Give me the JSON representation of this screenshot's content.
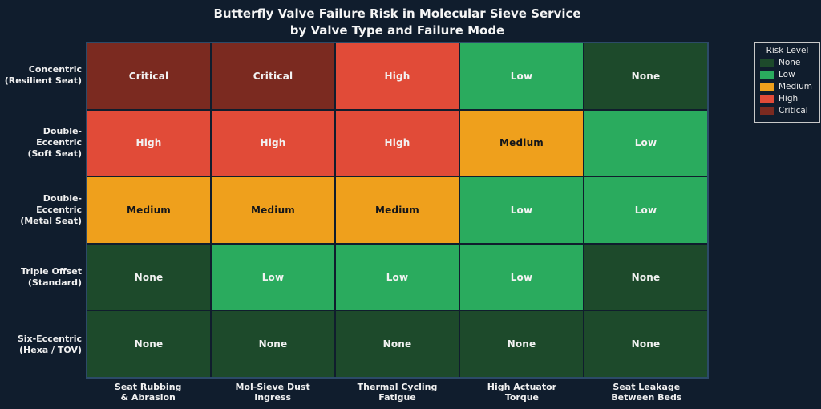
{
  "title": {
    "line1": "Butterfly Valve Failure Risk in Molecular Sieve Service",
    "line2": "by Valve Type and Failure Mode"
  },
  "chart_data": {
    "type": "heatmap",
    "title": "Butterfly Valve Failure Risk in Molecular Sieve Service by Valve Type and Failure Mode",
    "rows": [
      "Concentric (Resilient Seat)",
      "Double-Eccentric (Soft Seat)",
      "Double-Eccentric (Metal Seat)",
      "Triple Offset (Standard)",
      "Six-Eccentric (Hexa / TOV)"
    ],
    "y_label_lines": [
      [
        "Concentric",
        "(Resilient Seat)"
      ],
      [
        "Double-Eccentric",
        "(Soft Seat)"
      ],
      [
        "Double-Eccentric",
        "(Metal Seat)"
      ],
      [
        "Triple Offset",
        "(Standard)"
      ],
      [
        "Six-Eccentric",
        "(Hexa / TOV)"
      ]
    ],
    "columns": [
      "Seat Rubbing & Abrasion",
      "Mol-Sieve Dust Ingress",
      "Thermal Cycling Fatigue",
      "High Actuator Torque",
      "Seat Leakage Between Beds"
    ],
    "x_label_lines": [
      [
        "Seat Rubbing",
        "& Abrasion"
      ],
      [
        "Mol-Sieve Dust",
        "Ingress"
      ],
      [
        "Thermal Cycling",
        "Fatigue"
      ],
      [
        "High Actuator",
        "Torque"
      ],
      [
        "Seat Leakage",
        "Between Beds"
      ]
    ],
    "values": [
      [
        "Critical",
        "Critical",
        "High",
        "Low",
        "None"
      ],
      [
        "High",
        "High",
        "High",
        "Medium",
        "Low"
      ],
      [
        "Medium",
        "Medium",
        "Medium",
        "Low",
        "Low"
      ],
      [
        "None",
        "Low",
        "Low",
        "Low",
        "None"
      ],
      [
        "None",
        "None",
        "None",
        "None",
        "None"
      ]
    ],
    "levels": {
      "None": {
        "color": "#1d4a2b",
        "text_color": "#f2f2f2"
      },
      "Low": {
        "color": "#2aab5e",
        "text_color": "#f2f2f2"
      },
      "Medium": {
        "color": "#efa01c",
        "text_color": "#14161a"
      },
      "High": {
        "color": "#e14b38",
        "text_color": "#f2f2f2"
      },
      "Critical": {
        "color": "#7b2a20",
        "text_color": "#f2f2f2"
      }
    },
    "legend_title": "Risk Level",
    "legend_order": [
      "None",
      "Low",
      "Medium",
      "High",
      "Critical"
    ],
    "background": "#101d2d",
    "grid": true,
    "legend_position": "top-right"
  }
}
